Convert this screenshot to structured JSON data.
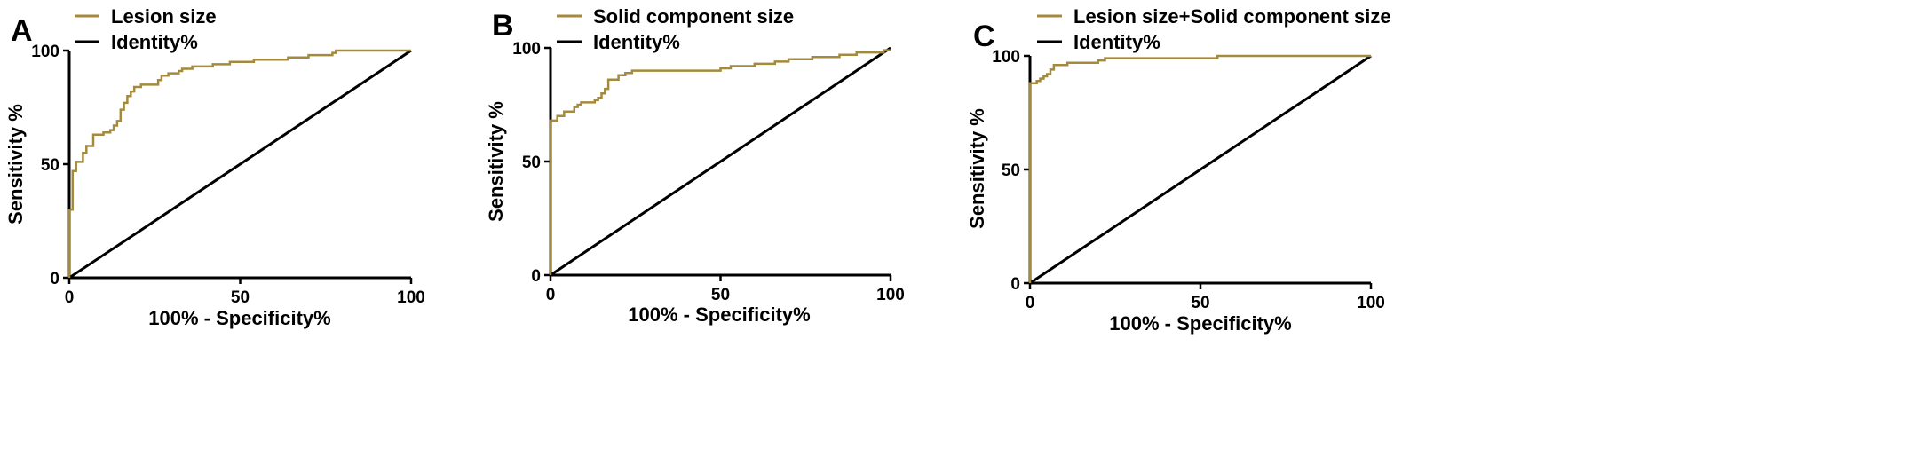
{
  "figure": {
    "background": "#ffffff"
  },
  "colors": {
    "roc": "#a38a3c",
    "identity": "#000000"
  },
  "chart_data": [
    {
      "type": "line",
      "panel_label": "A",
      "xlabel": "100% - Specificity%",
      "ylabel": "Sensitivity %",
      "xlim": [
        0,
        100
      ],
      "ylim": [
        0,
        100
      ],
      "xticks": [
        0,
        50,
        100
      ],
      "yticks": [
        0,
        50,
        100
      ],
      "grid": false,
      "legend_position": "top-left",
      "series": [
        {
          "name": "Lesion size",
          "color": "#a38a3c",
          "step": true,
          "x": [
            0,
            0,
            1,
            1,
            2,
            2,
            4,
            4,
            5,
            5,
            7,
            7,
            10,
            10,
            12,
            12,
            13,
            13,
            14,
            14,
            15,
            15,
            16,
            16,
            17,
            17,
            18,
            18,
            19,
            19,
            20,
            20,
            21,
            21,
            23,
            23,
            26,
            26,
            27,
            27,
            29,
            29,
            32,
            32,
            33,
            33,
            36,
            36,
            39,
            39,
            42,
            42,
            47,
            47,
            50,
            50,
            54,
            54,
            60,
            60,
            64,
            64,
            70,
            70,
            77,
            77,
            78,
            78,
            100
          ],
          "y": [
            0,
            30,
            30,
            47,
            47,
            51,
            51,
            55,
            55,
            58,
            58,
            63,
            63,
            64,
            64,
            65,
            65,
            67,
            67,
            69,
            69,
            74,
            74,
            77,
            77,
            80,
            80,
            82,
            82,
            84,
            84,
            84,
            84,
            85,
            85,
            85,
            85,
            87,
            87,
            89,
            89,
            90,
            90,
            91,
            91,
            92,
            92,
            93,
            93,
            93,
            93,
            94,
            94,
            95,
            95,
            95,
            95,
            96,
            96,
            96,
            96,
            97,
            97,
            98,
            98,
            99,
            99,
            100,
            100
          ]
        },
        {
          "name": "Identity%",
          "color": "#000000",
          "x": [
            0,
            100
          ],
          "y": [
            0,
            100
          ]
        }
      ]
    },
    {
      "type": "line",
      "panel_label": "B",
      "xlabel": "100% - Specificity%",
      "ylabel": "Sensitivity %",
      "xlim": [
        0,
        100
      ],
      "ylim": [
        0,
        100
      ],
      "xticks": [
        0,
        50,
        100
      ],
      "yticks": [
        0,
        50,
        100
      ],
      "grid": false,
      "legend_position": "top-left",
      "series": [
        {
          "name": "Solid component size",
          "color": "#a38a3c",
          "step": true,
          "x": [
            0,
            0,
            2,
            2,
            4,
            4,
            7,
            7,
            8,
            8,
            9,
            9,
            13,
            13,
            14,
            14,
            15,
            15,
            16,
            16,
            17,
            17,
            19,
            19,
            20,
            20,
            22,
            22,
            24,
            24,
            26,
            26,
            50,
            50,
            53,
            53,
            60,
            60,
            66,
            66,
            70,
            70,
            77,
            77,
            85,
            85,
            90,
            90,
            98,
            98,
            100
          ],
          "y": [
            0,
            68,
            68,
            70,
            70,
            72,
            72,
            74,
            74,
            75,
            75,
            76,
            76,
            77,
            77,
            78,
            78,
            80,
            80,
            82,
            82,
            86,
            86,
            86,
            86,
            88,
            88,
            89,
            89,
            90,
            90,
            90,
            90,
            91,
            91,
            92,
            92,
            93,
            93,
            94,
            94,
            95,
            95,
            96,
            96,
            97,
            97,
            98,
            98,
            99,
            99
          ]
        },
        {
          "name": "Identity%",
          "color": "#000000",
          "x": [
            0,
            100
          ],
          "y": [
            0,
            100
          ]
        }
      ]
    },
    {
      "type": "line",
      "panel_label": "C",
      "xlabel": "100% - Specificity%",
      "ylabel": "Sensitivity %",
      "xlim": [
        0,
        100
      ],
      "ylim": [
        0,
        100
      ],
      "xticks": [
        0,
        50,
        100
      ],
      "yticks": [
        0,
        50,
        100
      ],
      "grid": false,
      "legend_position": "top-left",
      "series": [
        {
          "name": "Lesion size+Solid component size",
          "color": "#a38a3c",
          "step": true,
          "x": [
            0,
            0,
            2,
            2,
            3,
            3,
            4,
            4,
            5,
            5,
            6,
            6,
            7,
            7,
            9,
            9,
            11,
            11,
            13,
            13,
            16,
            16,
            20,
            20,
            22,
            22,
            55,
            55,
            100
          ],
          "y": [
            0,
            88,
            88,
            89,
            89,
            90,
            90,
            91,
            91,
            92,
            92,
            94,
            94,
            96,
            96,
            96,
            96,
            97,
            97,
            97,
            97,
            97,
            97,
            98,
            98,
            99,
            99,
            100,
            100
          ]
        },
        {
          "name": "Identity%",
          "color": "#000000",
          "x": [
            0,
            100
          ],
          "y": [
            0,
            100
          ]
        }
      ]
    }
  ]
}
